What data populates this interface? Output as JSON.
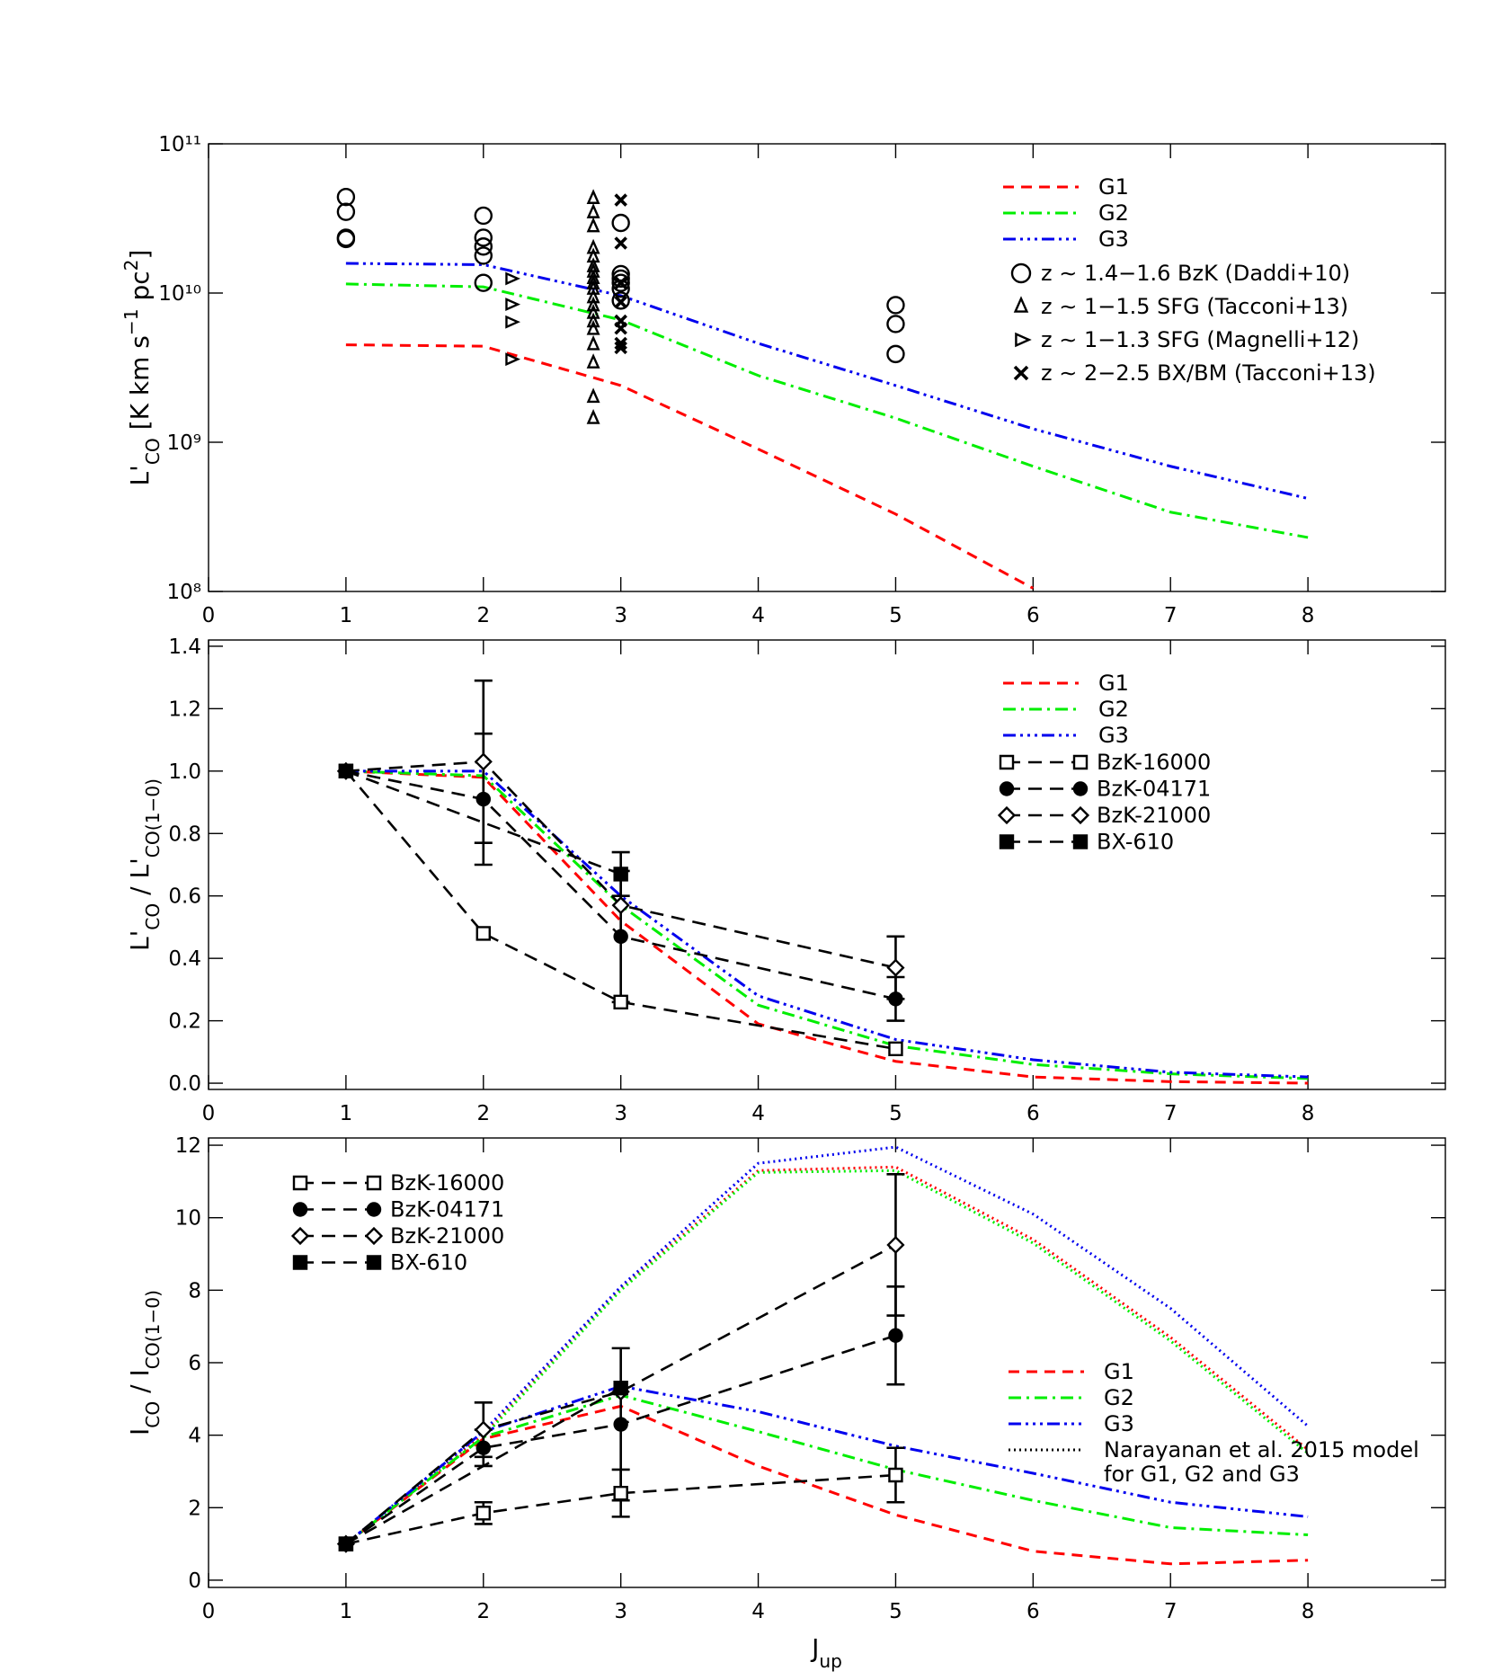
{
  "chart_data": [
    {
      "type": "line",
      "log_y": true,
      "legend": "upper right",
      "y_label": [
        {
          "t": "L'"
        },
        {
          "t": "CO",
          "sub": true
        },
        {
          "t": " [K km s"
        },
        {
          "t": "−1",
          "sup": true
        },
        {
          "t": " pc"
        },
        {
          "t": "2",
          "sup": true
        },
        {
          "t": "]"
        }
      ],
      "xlim": [
        0,
        9
      ],
      "xticks": [
        0,
        1,
        2,
        3,
        4,
        5,
        6,
        7,
        8
      ],
      "ylim": [
        100000000.0,
        100000000000.0
      ],
      "yticks": [
        {
          "value": 100000000.0,
          "label": "10⁸"
        },
        {
          "value": 1000000000.0,
          "label": "10⁹"
        },
        {
          "value": 10000000000.0,
          "label": "10¹⁰"
        },
        {
          "value": 100000000000.0,
          "label": "10¹¹"
        }
      ],
      "series": [
        {
          "name": "G1",
          "color": "#ff0000",
          "dash": "dashed",
          "x": [
            1,
            2,
            3,
            4,
            5,
            6
          ],
          "values": [
            4500000000.0,
            4400000000.0,
            2400000000.0,
            900000000.0,
            330000000.0,
            105000000.0
          ]
        },
        {
          "name": "G2",
          "color": "#00ee00",
          "dash": "dash-dot",
          "x": [
            1,
            2,
            3,
            4,
            5,
            6,
            7,
            8
          ],
          "values": [
            11500000000.0,
            11000000000.0,
            6600000000.0,
            2800000000.0,
            1450000000.0,
            690000000.0,
            340000000.0,
            230000000.0
          ]
        },
        {
          "name": "G3",
          "color": "#0000ee",
          "dash": "dash-dot-dot-dot",
          "x": [
            1,
            2,
            3,
            4,
            5,
            6,
            7,
            8
          ],
          "values": [
            15800000000.0,
            15500000000.0,
            9600000000.0,
            4600000000.0,
            2400000000.0,
            1230000000.0,
            690000000.0,
            420000000.0
          ]
        }
      ],
      "scatter": [
        {
          "name": "z ∼ 1.4−1.6 BzK (Daddi+10)",
          "marker": "circle",
          "x": [
            1,
            1,
            1,
            1,
            2,
            2,
            2,
            2,
            2,
            3,
            3,
            3,
            3,
            3,
            3,
            5,
            5,
            5
          ],
          "values": [
            44000000000.0,
            35000000000.0,
            23500000000.0,
            23000000000.0,
            33000000000.0,
            23500000000.0,
            20500000000.0,
            17800000000.0,
            11700000000.0,
            29500000000.0,
            13400000000.0,
            12500000000.0,
            11700000000.0,
            10700000000.0,
            8900000000.0,
            8300000000.0,
            6200000000.0,
            3900000000.0
          ]
        },
        {
          "name": "z ∼ 1−1.5 SFG (Tacconi+13)",
          "marker": "triangle-up",
          "x": [
            2.8,
            2.8,
            2.8,
            2.8,
            2.8,
            2.8,
            2.8,
            2.8,
            2.8,
            2.8,
            2.8,
            2.8,
            2.8,
            2.8,
            2.8,
            2.8,
            2.8,
            2.8,
            2.8
          ],
          "values": [
            43000000000.0,
            34500000000.0,
            27800000000.0,
            19900000000.0,
            17400000000.0,
            15000000000.0,
            13800000000.0,
            12500000000.0,
            11500000000.0,
            10600000000.0,
            9300000000.0,
            8200000000.0,
            7300000000.0,
            6400000000.0,
            5700000000.0,
            4500000000.0,
            3400000000.0,
            2000000000.0,
            1440000000.0
          ]
        },
        {
          "name": "z ∼ 1−1.3 SFG (Magnelli+12)",
          "marker": "triangle-right",
          "x": [
            2.2,
            2.2,
            2.2,
            2.2
          ],
          "values": [
            12500000000.0,
            8400000000.0,
            6400000000.0,
            3600000000.0
          ]
        },
        {
          "name": "z ∼ 2−2.5 BX/BM (Tacconi+13)",
          "marker": "cross",
          "x": [
            3,
            3,
            3,
            3,
            3,
            3,
            3,
            3
          ],
          "values": [
            42000000000.0,
            21600000000.0,
            11700000000.0,
            8700000000.0,
            6500000000.0,
            5800000000.0,
            4600000000.0,
            4300000000.0
          ]
        }
      ]
    },
    {
      "type": "line",
      "legend": "upper right",
      "y_label": [
        {
          "t": "L'"
        },
        {
          "t": "CO",
          "sub": true
        },
        {
          "t": " / L'"
        },
        {
          "t": "CO(1−0)",
          "sub": true
        }
      ],
      "xlim": [
        0,
        9
      ],
      "xticks": [
        0,
        1,
        2,
        3,
        4,
        5,
        6,
        7,
        8
      ],
      "ylim": [
        -0.02,
        1.42
      ],
      "yticks": [
        {
          "value": 0,
          "label": "0.0"
        },
        0.2,
        0.4,
        0.6,
        0.8,
        {
          "value": 1,
          "label": "1.0"
        },
        1.2,
        1.4
      ],
      "series": [
        {
          "name": "G1",
          "color": "#ff0000",
          "dash": "dashed",
          "x": [
            1,
            2,
            3,
            4,
            5,
            6,
            7,
            8
          ],
          "values": [
            1.0,
            0.98,
            0.52,
            0.19,
            0.07,
            0.02,
            0.005,
            0.0
          ]
        },
        {
          "name": "G2",
          "color": "#00ee00",
          "dash": "dash-dot",
          "x": [
            1,
            2,
            3,
            4,
            5,
            6,
            7,
            8
          ],
          "values": [
            1.0,
            0.985,
            0.57,
            0.25,
            0.12,
            0.06,
            0.03,
            0.015
          ]
        },
        {
          "name": "G3",
          "color": "#0000ee",
          "dash": "dash-dot-dot-dot",
          "x": [
            1,
            2,
            3,
            4,
            5,
            6,
            7,
            8
          ],
          "values": [
            1.0,
            1.0,
            0.6,
            0.28,
            0.14,
            0.075,
            0.035,
            0.02
          ]
        }
      ],
      "obs": [
        {
          "name": "BzK-16000",
          "marker": "square-open",
          "x": [
            1,
            2,
            3,
            5
          ],
          "values": [
            1.0,
            0.48,
            0.26,
            0.11
          ]
        },
        {
          "name": "BzK-04171",
          "marker": "circle-filled",
          "x": [
            1,
            2,
            3,
            5
          ],
          "values": [
            1.0,
            0.91,
            0.47,
            0.27
          ],
          "errors": [
            null,
            0.21,
            0.21,
            0.07
          ]
        },
        {
          "name": "BzK-21000",
          "marker": "diamond-open",
          "x": [
            1,
            2,
            3,
            5
          ],
          "values": [
            1.0,
            1.03,
            0.57,
            0.37
          ],
          "errors": [
            null,
            0.26,
            null,
            0.1
          ]
        },
        {
          "name": "BX-610",
          "marker": "square-filled",
          "x": [
            1,
            3
          ],
          "values": [
            1.0,
            0.67
          ],
          "errors": [
            null,
            0.07
          ]
        }
      ]
    },
    {
      "type": "line",
      "legend": "upper left",
      "model_legend": "center right",
      "y_label": [
        {
          "t": "I"
        },
        {
          "t": "CO",
          "sub": true
        },
        {
          "t": " / I"
        },
        {
          "t": "CO(1−0)",
          "sub": true
        }
      ],
      "x_label": [
        {
          "t": "J"
        },
        {
          "t": "up",
          "sub": true
        }
      ],
      "xlim": [
        0,
        9
      ],
      "xticks": [
        0,
        1,
        2,
        3,
        4,
        5,
        6,
        7,
        8
      ],
      "ylim": [
        -0.2,
        12.2
      ],
      "yticks": [
        0,
        2,
        4,
        6,
        8,
        10,
        12
      ],
      "series": [
        {
          "name": "G1",
          "color": "#ff0000",
          "dash": "dashed",
          "x": [
            1,
            2,
            3,
            4,
            5,
            6,
            7,
            8
          ],
          "values": [
            1.0,
            3.9,
            4.8,
            3.15,
            1.8,
            0.8,
            0.45,
            0.55
          ]
        },
        {
          "name": "G2",
          "color": "#00ee00",
          "dash": "dash-dot",
          "x": [
            1,
            2,
            3,
            4,
            5,
            6,
            7,
            8
          ],
          "values": [
            1.0,
            3.95,
            5.1,
            4.1,
            3.05,
            2.2,
            1.45,
            1.25
          ]
        },
        {
          "name": "G3",
          "color": "#0000ee",
          "dash": "dash-dot-dot-dot",
          "x": [
            1,
            2,
            3,
            4,
            5,
            6,
            7,
            8
          ],
          "values": [
            1.0,
            4.1,
            5.35,
            4.65,
            3.7,
            2.95,
            2.15,
            1.75
          ]
        }
      ],
      "models": [
        {
          "color": "#ff0000",
          "x": [
            1,
            2,
            3,
            4,
            5,
            6,
            7,
            8
          ],
          "values": [
            1.0,
            4.0,
            8.05,
            11.3,
            11.4,
            9.4,
            6.7,
            3.6
          ]
        },
        {
          "color": "#00ee00",
          "x": [
            1,
            2,
            3,
            4,
            5,
            6,
            7,
            8
          ],
          "values": [
            1.0,
            3.95,
            8.0,
            11.25,
            11.3,
            9.3,
            6.6,
            3.5
          ]
        },
        {
          "color": "#0000ee",
          "x": [
            1,
            2,
            3,
            4,
            5,
            6,
            7,
            8
          ],
          "values": [
            1.0,
            4.1,
            8.1,
            11.5,
            11.95,
            10.1,
            7.5,
            4.25
          ]
        }
      ],
      "model_legend_color": "#000000",
      "model_legend_label": [
        "Narayanan et al. 2015 model",
        "for G1, G2 and G3"
      ],
      "obs": [
        {
          "name": "BzK-16000",
          "marker": "square-open",
          "x": [
            1,
            2,
            3,
            5
          ],
          "values": [
            1.0,
            1.85,
            2.4,
            2.9
          ],
          "errors": [
            null,
            0.3,
            0.65,
            0.75
          ]
        },
        {
          "name": "BzK-04171",
          "marker": "circle-filled",
          "x": [
            1,
            2,
            3,
            5
          ],
          "values": [
            1.0,
            3.65,
            4.3,
            6.75
          ],
          "errors": [
            null,
            0.5,
            2.1,
            1.35
          ]
        },
        {
          "name": "BzK-21000",
          "marker": "diamond-open",
          "x": [
            1,
            2,
            3,
            5
          ],
          "values": [
            1.0,
            4.15,
            5.2,
            9.25
          ],
          "errors": [
            null,
            0.75,
            null,
            1.95
          ]
        },
        {
          "name": "BX-610",
          "marker": "square-filled",
          "x": [
            1,
            3
          ],
          "values": [
            1.0,
            5.3
          ]
        }
      ]
    }
  ]
}
